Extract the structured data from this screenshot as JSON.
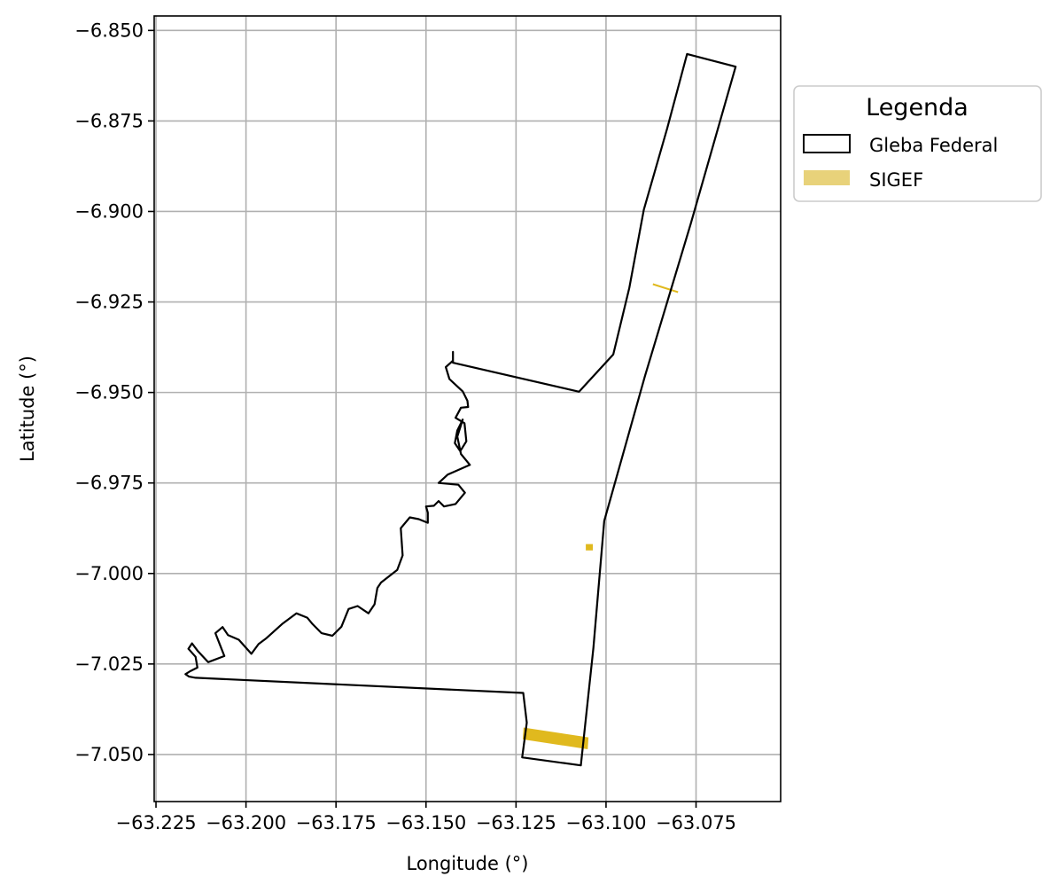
{
  "chart_data": {
    "type": "map",
    "xlabel": "Longitude (°)",
    "ylabel": "Latitude (°)",
    "xlim": [
      -63.2255,
      -63.0515
    ],
    "ylim": [
      -7.063,
      -6.846
    ],
    "grid": true,
    "xticks": [
      -63.225,
      -63.2,
      -63.175,
      -63.15,
      -63.125,
      -63.1,
      -63.075
    ],
    "xtick_labels": [
      "−63.225",
      "−63.200",
      "−63.175",
      "−63.150",
      "−63.125",
      "−63.100",
      "−63.075"
    ],
    "yticks": [
      -6.85,
      -6.875,
      -6.9,
      -6.925,
      -6.95,
      -6.975,
      -7.0,
      -7.025,
      -7.05
    ],
    "ytick_labels": [
      "−6.850",
      "−6.875",
      "−6.900",
      "−6.925",
      "−6.950",
      "−6.975",
      "−7.000",
      "−7.025",
      "−7.050"
    ],
    "legend": {
      "title": "Legenda",
      "placement": "outside-upper-right",
      "entries": [
        {
          "label": "Gleba Federal",
          "style": "outline",
          "color": "#000000"
        },
        {
          "label": "SIGEF",
          "style": "filled",
          "color": "#e8d27a"
        }
      ]
    },
    "layers": [
      {
        "name": "Gleba Federal",
        "kind": "polygon-outline",
        "color": "#000000",
        "coordinates": [
          [
            -63.1425,
            -6.9388
          ],
          [
            -63.1425,
            -6.9412
          ],
          [
            -63.1445,
            -6.943
          ],
          [
            -63.1435,
            -6.9463
          ],
          [
            -63.1398,
            -6.9497
          ],
          [
            -63.1385,
            -6.9523
          ],
          [
            -63.1383,
            -6.954
          ],
          [
            -63.1403,
            -6.9542
          ],
          [
            -63.1418,
            -6.957
          ],
          [
            -63.1393,
            -6.9585
          ],
          [
            -63.1388,
            -6.9635
          ],
          [
            -63.1405,
            -6.9662
          ],
          [
            -63.142,
            -6.964
          ],
          [
            -63.1413,
            -6.9605
          ],
          [
            -63.1398,
            -6.9575
          ],
          [
            -63.1413,
            -6.9622
          ],
          [
            -63.1403,
            -6.967
          ],
          [
            -63.1378,
            -6.97
          ],
          [
            -63.144,
            -6.9727
          ],
          [
            -63.1465,
            -6.975
          ],
          [
            -63.141,
            -6.9755
          ],
          [
            -63.1392,
            -6.9777
          ],
          [
            -63.1418,
            -6.9808
          ],
          [
            -63.145,
            -6.9815
          ],
          [
            -63.1465,
            -6.98
          ],
          [
            -63.1478,
            -6.9813
          ],
          [
            -63.15,
            -6.9815
          ],
          [
            -63.1495,
            -6.9832
          ],
          [
            -63.1495,
            -6.986
          ],
          [
            -63.152,
            -6.985
          ],
          [
            -63.1545,
            -6.9845
          ],
          [
            -63.157,
            -6.9875
          ],
          [
            -63.1565,
            -6.995
          ],
          [
            -63.158,
            -6.999
          ],
          [
            -63.1625,
            -7.0025
          ],
          [
            -63.1635,
            -7.004
          ],
          [
            -63.1643,
            -7.0085
          ],
          [
            -63.166,
            -7.011
          ],
          [
            -63.169,
            -7.009
          ],
          [
            -63.1715,
            -7.0098
          ],
          [
            -63.1735,
            -7.0147
          ],
          [
            -63.176,
            -7.0172
          ],
          [
            -63.179,
            -7.0165
          ],
          [
            -63.1815,
            -7.014
          ],
          [
            -63.183,
            -7.0122
          ],
          [
            -63.186,
            -7.011
          ],
          [
            -63.19,
            -7.014
          ],
          [
            -63.1945,
            -7.018
          ],
          [
            -63.1965,
            -7.0195
          ],
          [
            -63.1985,
            -7.0222
          ],
          [
            -63.202,
            -7.0183
          ],
          [
            -63.205,
            -7.017
          ],
          [
            -63.2065,
            -7.0148
          ],
          [
            -63.2085,
            -7.0165
          ],
          [
            -63.207,
            -7.0203
          ],
          [
            -63.206,
            -7.0228
          ],
          [
            -63.2105,
            -7.0245
          ],
          [
            -63.2135,
            -7.0213
          ],
          [
            -63.215,
            -7.0193
          ],
          [
            -63.216,
            -7.0208
          ],
          [
            -63.214,
            -7.023
          ],
          [
            -63.2135,
            -7.026
          ],
          [
            -63.2155,
            -7.027
          ],
          [
            -63.2168,
            -7.0278
          ],
          [
            -63.2158,
            -7.0285
          ],
          [
            -63.214,
            -7.0288
          ],
          [
            -63.123,
            -7.033
          ],
          [
            -63.122,
            -7.0412
          ],
          [
            -63.1233,
            -7.0508
          ],
          [
            -63.107,
            -7.053
          ],
          [
            -63.1035,
            -7.0205
          ],
          [
            -63.1005,
            -6.9855
          ],
          [
            -63.0892,
            -6.9455
          ],
          [
            -63.0765,
            -6.9035
          ],
          [
            -63.064,
            -6.86
          ],
          [
            -63.0775,
            -6.8565
          ],
          [
            -63.083,
            -6.877
          ],
          [
            -63.0895,
            -6.8995
          ],
          [
            -63.0935,
            -6.921
          ],
          [
            -63.098,
            -6.9395
          ],
          [
            -63.1075,
            -6.9498
          ],
          [
            -63.1425,
            -6.9418
          ],
          [
            -63.1425,
            -6.9388
          ]
        ]
      },
      {
        "name": "SIGEF",
        "kind": "polygons-filled",
        "color": "#e0b91e",
        "polygons": [
          [
            [
              -63.1228,
              -7.0427
            ],
            [
              -63.105,
              -7.0454
            ],
            [
              -63.1052,
              -7.0484
            ],
            [
              -63.123,
              -7.0457
            ]
          ],
          [
            [
              -63.1055,
              -6.992
            ],
            [
              -63.1038,
              -6.992
            ],
            [
              -63.1038,
              -6.9935
            ],
            [
              -63.1055,
              -6.9935
            ]
          ]
        ]
      },
      {
        "name": "SIGEF-line",
        "kind": "line",
        "color": "#e0b91e",
        "coordinates": [
          [
            -63.087,
            -6.9201
          ],
          [
            -63.08,
            -6.9223
          ]
        ]
      }
    ]
  }
}
